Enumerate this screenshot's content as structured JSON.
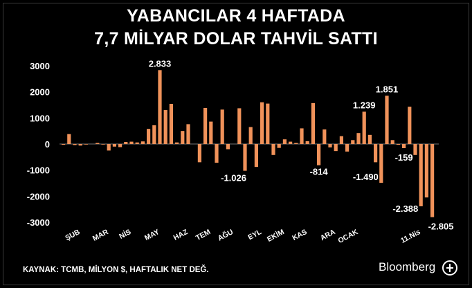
{
  "title_line1": "YABANCILAR 4 HAFTADA",
  "title_line2": "7,7 MİLYAR DOLAR TAHVİL SATTI",
  "source": "KAYNAK: TCMB, MİLYON $, HAFTALIK NET DEĞ.",
  "brand": "Bloomberg",
  "brand_badge_icon": "ht-circle-logo-icon",
  "colors": {
    "background": "#000000",
    "bar": "#f0925a",
    "text": "#ffffff"
  },
  "chart_data": {
    "type": "bar",
    "ylim": [
      -3000,
      3000
    ],
    "yticks": [
      3000,
      2000,
      1000,
      0,
      -1000,
      -2000,
      -3000
    ],
    "grid": false,
    "xlabels": [
      {
        "label": "ŞUB",
        "index": 3
      },
      {
        "label": "MAR",
        "index": 8
      },
      {
        "label": "NİS",
        "index": 12
      },
      {
        "label": "MAY",
        "index": 17
      },
      {
        "label": "HAZ",
        "index": 22
      },
      {
        "label": "TEM",
        "index": 26
      },
      {
        "label": "AĞU",
        "index": 30
      },
      {
        "label": "EYL",
        "index": 35
      },
      {
        "label": "EKİM",
        "index": 39
      },
      {
        "label": "KAS",
        "index": 43
      },
      {
        "label": "ARA",
        "index": 48
      },
      {
        "label": "OCAK",
        "index": 52
      },
      {
        "label": "11.Nis",
        "index": 63
      }
    ],
    "values": [
      -30,
      380,
      -40,
      -60,
      -20,
      0,
      40,
      -20,
      -250,
      -100,
      -120,
      80,
      90,
      60,
      100,
      580,
      720,
      2833,
      1300,
      1540,
      60,
      500,
      760,
      0,
      -700,
      1380,
      860,
      -720,
      1320,
      -200,
      0,
      1370,
      -1026,
      650,
      -880,
      1600,
      1550,
      -420,
      -150,
      180,
      90,
      40,
      600,
      110,
      1570,
      -814,
      560,
      -130,
      -270,
      300,
      -290,
      150,
      420,
      1239,
      350,
      -700,
      -1490,
      1851,
      150,
      -30,
      -159,
      1430,
      -420,
      -2388,
      -2050,
      -2805
    ],
    "data_labels": [
      {
        "index": 17,
        "text": "2.833"
      },
      {
        "index": 32,
        "text": "-1.026"
      },
      {
        "index": 45,
        "text": "-814"
      },
      {
        "index": 56,
        "text": "-1.490"
      },
      {
        "index": 53,
        "text": "1.239"
      },
      {
        "index": 57,
        "text": "1.851"
      },
      {
        "index": 60,
        "text": "-159"
      },
      {
        "index": 63,
        "text": "-2.388"
      },
      {
        "index": 65,
        "text": "-2.805"
      }
    ]
  }
}
